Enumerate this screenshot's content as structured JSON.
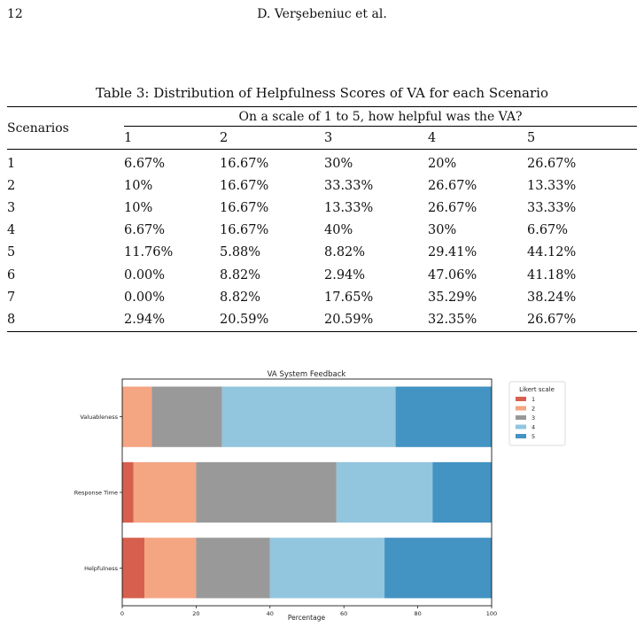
{
  "header": {
    "page_number": "12",
    "author": "D. Verşebeniuc et al."
  },
  "table": {
    "caption": "Table 3: Distribution of Helpfulness Scores of VA for each Scenario",
    "row_header": "Scenarios",
    "question": "On a scale of 1 to 5, how helpful was the VA?",
    "columns": [
      "1",
      "2",
      "3",
      "4",
      "5"
    ],
    "rows": [
      {
        "scenario": "1",
        "values": [
          "6.67%",
          "16.67%",
          "30%",
          "20%",
          "26.67%"
        ]
      },
      {
        "scenario": "2",
        "values": [
          "10%",
          "16.67%",
          "33.33%",
          "26.67%",
          "13.33%"
        ]
      },
      {
        "scenario": "3",
        "values": [
          "10%",
          "16.67%",
          "13.33%",
          "26.67%",
          "33.33%"
        ]
      },
      {
        "scenario": "4",
        "values": [
          "6.67%",
          "16.67%",
          "40%",
          "30%",
          "6.67%"
        ]
      },
      {
        "scenario": "5",
        "values": [
          "11.76%",
          "5.88%",
          "8.82%",
          "29.41%",
          "44.12%"
        ]
      },
      {
        "scenario": "6",
        "values": [
          "0.00%",
          "8.82%",
          "2.94%",
          "47.06%",
          "41.18%"
        ]
      },
      {
        "scenario": "7",
        "values": [
          "0.00%",
          "8.82%",
          "17.65%",
          "35.29%",
          "38.24%"
        ]
      },
      {
        "scenario": "8",
        "values": [
          "2.94%",
          "20.59%",
          "20.59%",
          "32.35%",
          "26.67%"
        ]
      }
    ]
  },
  "chart_data": {
    "type": "bar",
    "orientation": "horizontal",
    "stacked": true,
    "title": "VA System Feedback",
    "xlabel": "Percentage",
    "ylabel": "",
    "xlim": [
      0,
      100
    ],
    "xticks": [
      "0",
      "20",
      "40",
      "60",
      "80",
      "100"
    ],
    "categories": [
      "Valuableness",
      "Response Time",
      "Helpfulness"
    ],
    "legend_title": "Likert scale",
    "legend_position": "right",
    "series": [
      {
        "name": "1",
        "color": "#d6604d",
        "values": [
          0,
          3,
          6
        ]
      },
      {
        "name": "2",
        "color": "#f4a582",
        "values": [
          8,
          17,
          14
        ]
      },
      {
        "name": "3",
        "color": "#999999",
        "values": [
          19,
          38,
          20
        ]
      },
      {
        "name": "4",
        "color": "#92c5de",
        "values": [
          47,
          26,
          31
        ]
      },
      {
        "name": "5",
        "color": "#4393c3",
        "values": [
          26,
          16,
          29
        ]
      }
    ]
  }
}
